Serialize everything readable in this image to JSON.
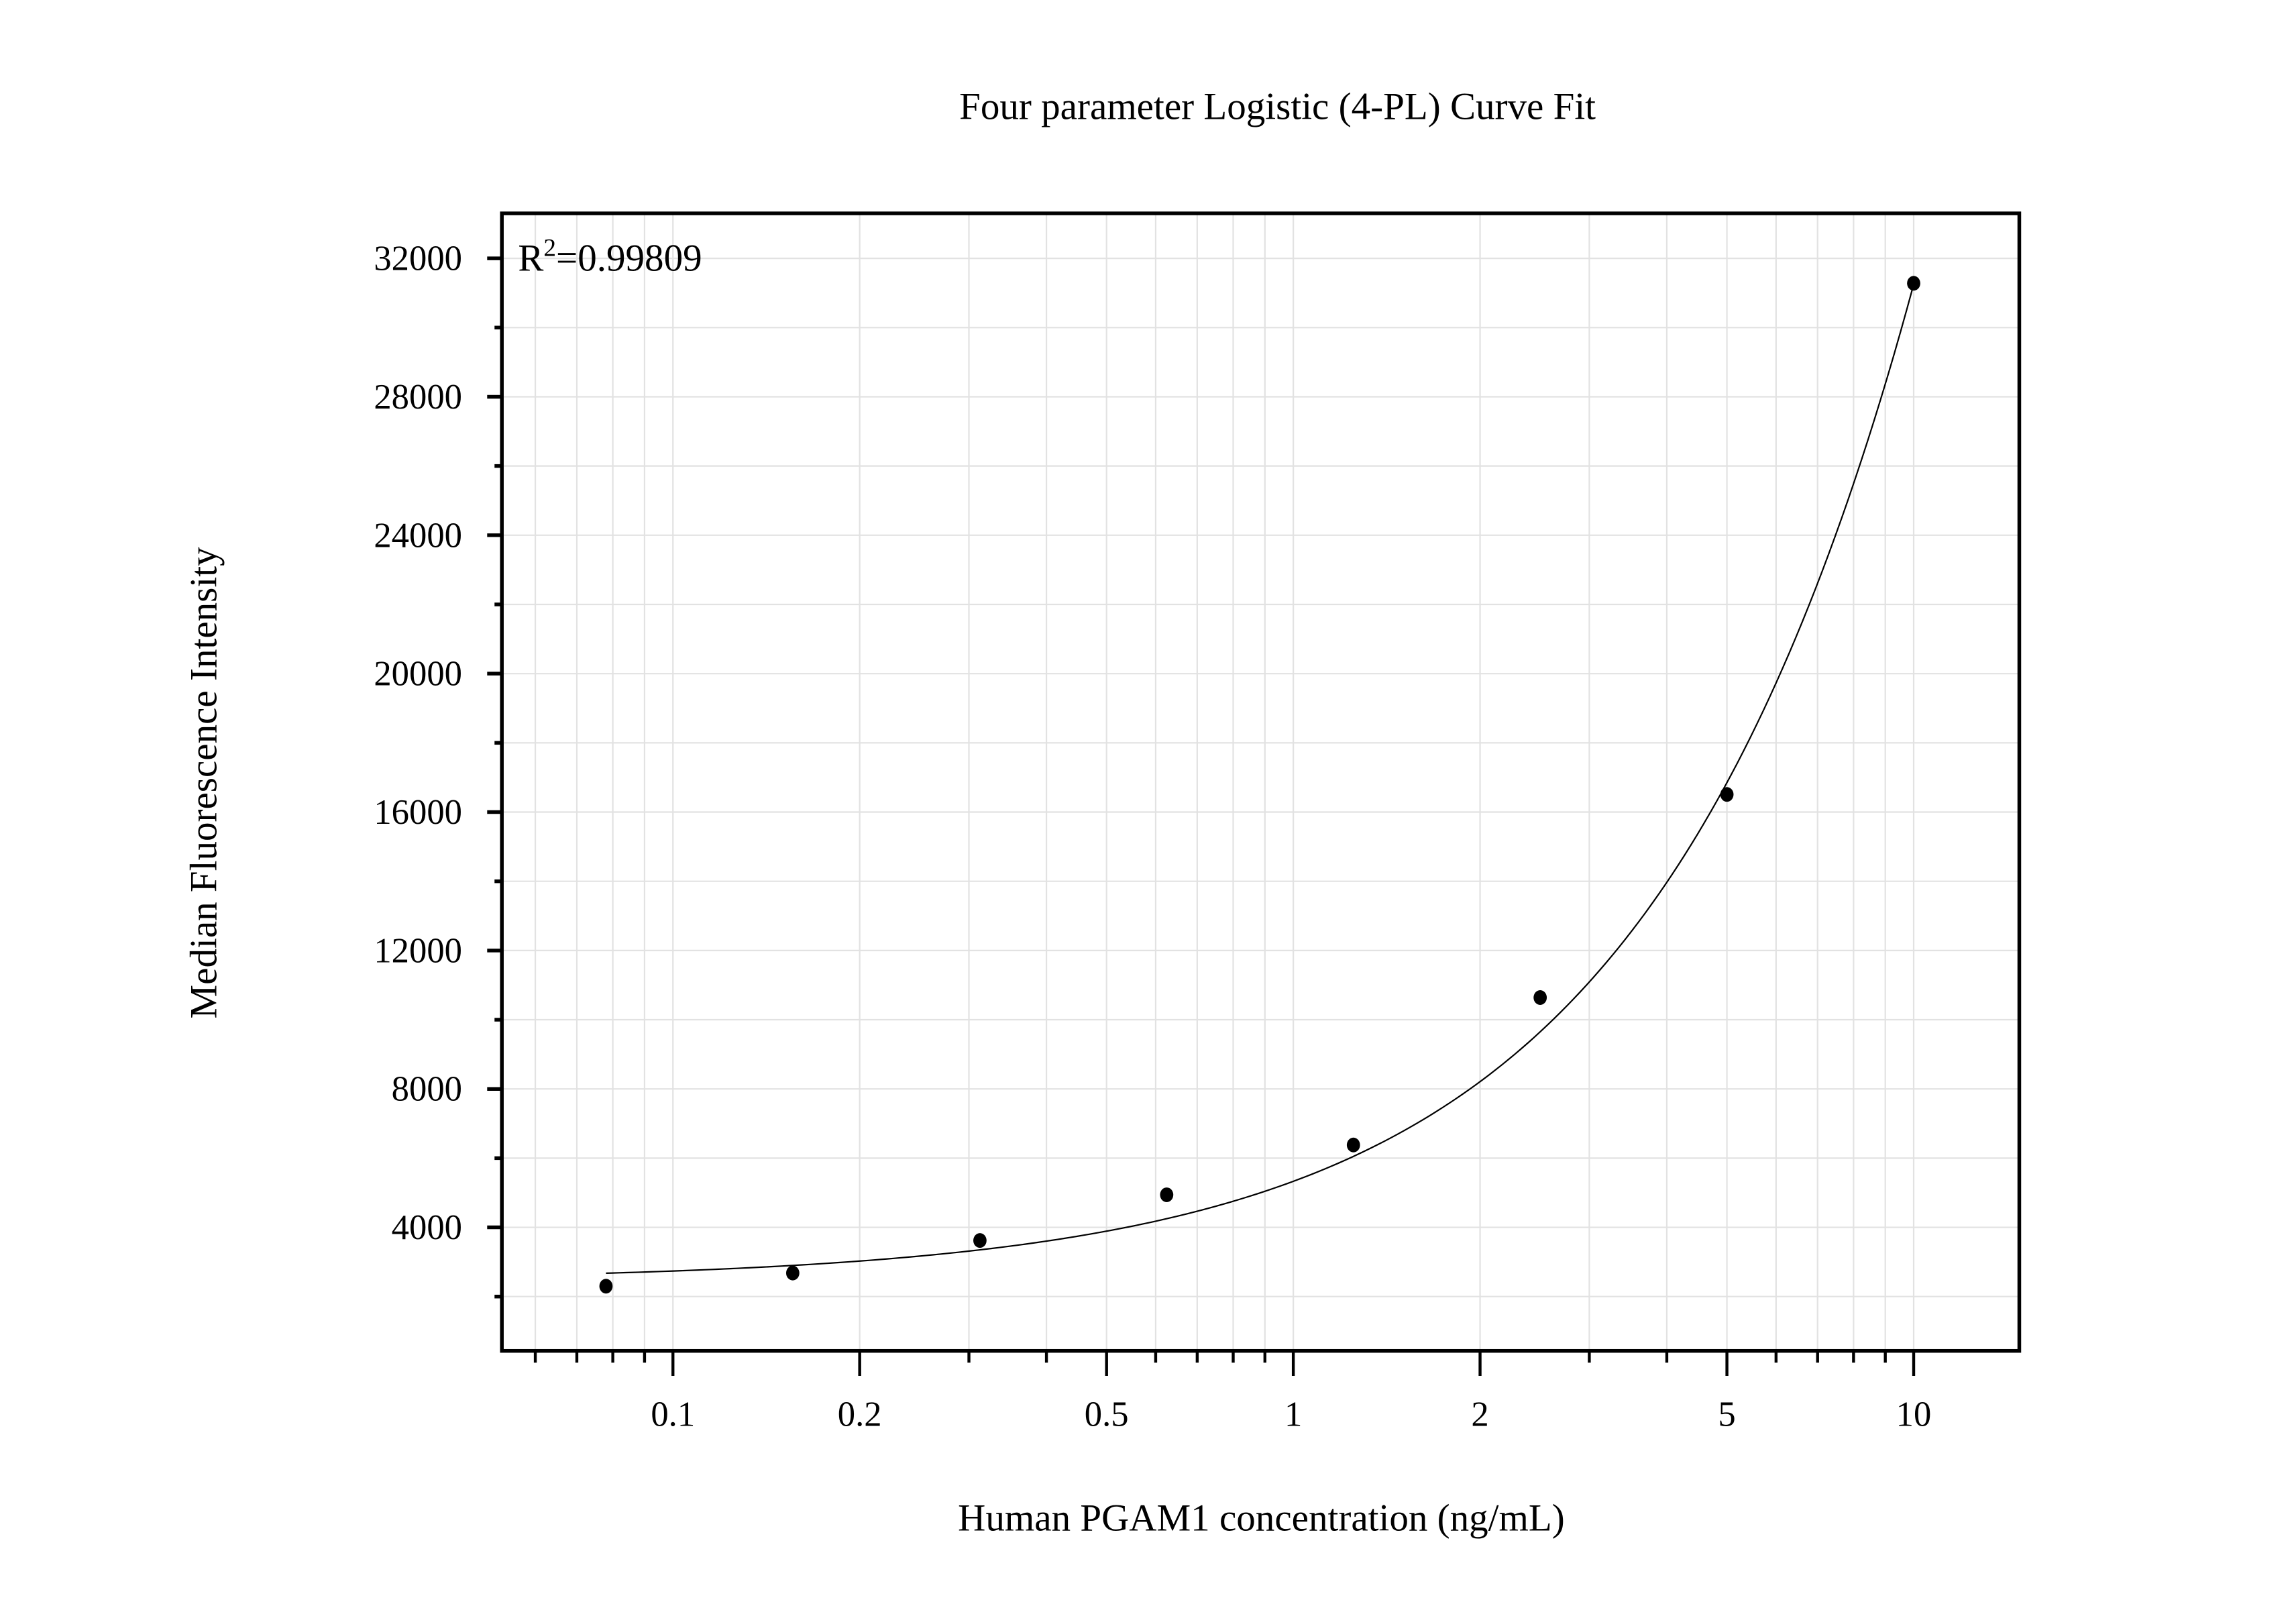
{
  "chart_data": {
    "type": "scatter",
    "title": "Four parameter Logistic (4-PL) Curve Fit",
    "xlabel": "Human PGAM1 concentration (ng/mL)",
    "ylabel": "Median Fluorescence Intensity",
    "x_scale": "log",
    "xlim": [
      0.053,
      14.8
    ],
    "ylim": [
      430,
      33300
    ],
    "x_ticks": [
      0.1,
      0.2,
      0.5,
      1,
      2,
      5,
      10
    ],
    "x_tick_labels": [
      "0.1",
      "0.2",
      "0.5",
      "1",
      "2",
      "5",
      "10"
    ],
    "y_ticks": [
      4000,
      8000,
      12000,
      16000,
      20000,
      24000,
      28000,
      32000
    ],
    "y_tick_labels": [
      "4000",
      "8000",
      "12000",
      "16000",
      "20000",
      "24000",
      "28000",
      "32000"
    ],
    "grid": true,
    "annotation": {
      "prefix": "R",
      "superscript": "2",
      "text": "=0.99809"
    },
    "series": [
      {
        "x": [
          0.078,
          0.156,
          0.3125,
          0.625,
          1.25,
          2.5,
          5,
          10
        ],
        "y": [
          2300,
          2680,
          3620,
          4940,
          6380,
          10640,
          16510,
          31280
        ]
      }
    ],
    "fit_curve": "4-PL",
    "colors": {
      "points": "#000000",
      "curve": "#000000",
      "grid": "#e2e2e2",
      "axes": "#000000"
    }
  }
}
